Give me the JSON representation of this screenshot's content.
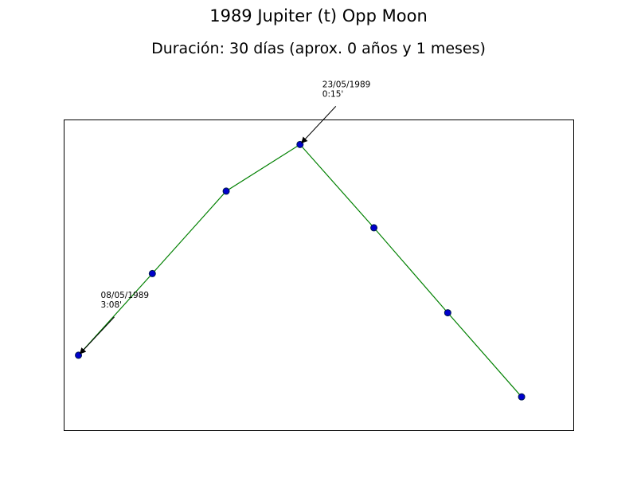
{
  "chart_data": {
    "type": "line",
    "title": "1989 Jupiter (t) Opp Moon",
    "subtitle": "Duración: 30 días (aprox. 0 años y 1 meses)",
    "xlabel": "",
    "ylabel": "",
    "grid": false,
    "legend": "none",
    "x_range": [
      -0.2,
      6.7
    ],
    "y_range": [
      -3.43,
      0.3
    ],
    "series": [
      {
        "color": "#008000",
        "marker_color": "#0000cc",
        "points": [
          {
            "x": 0,
            "y": -2.53
          },
          {
            "x": 1,
            "y": -1.55
          },
          {
            "x": 2,
            "y": -0.56
          },
          {
            "x": 3,
            "y": 0.0
          },
          {
            "x": 4,
            "y": -1.0
          },
          {
            "x": 5,
            "y": -2.02
          },
          {
            "x": 6,
            "y": -3.03
          }
        ]
      }
    ],
    "annotations": [
      {
        "point_index": 0,
        "lines": [
          "08/05/1989",
          "3:08'"
        ]
      },
      {
        "point_index": 3,
        "lines": [
          "23/05/1989",
          "0:15'"
        ]
      }
    ]
  }
}
